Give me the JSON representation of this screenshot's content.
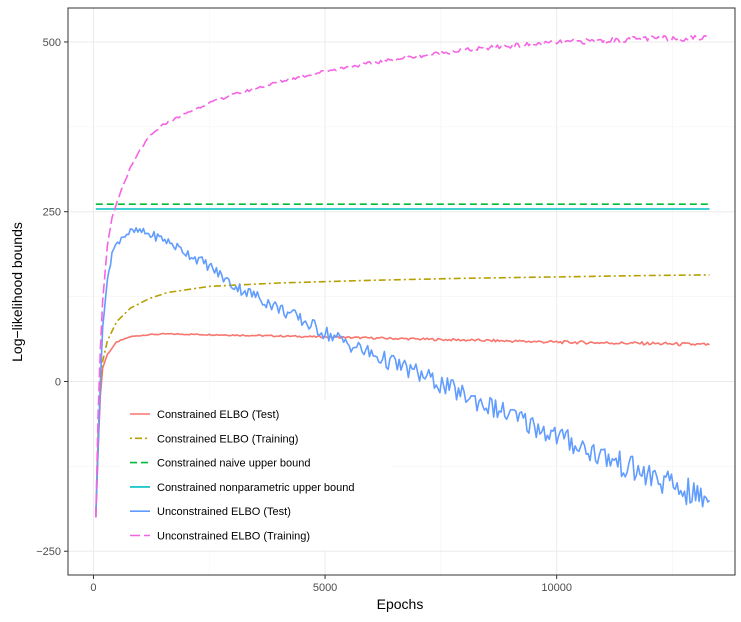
{
  "chart_data": {
    "type": "line",
    "title": "",
    "xlabel": "Epochs",
    "ylabel": "Log−likelihood bounds",
    "xlim": [
      -550,
      13850
    ],
    "ylim": [
      -285,
      550
    ],
    "x_ticks": [
      0,
      5000,
      10000
    ],
    "x_tick_labels": [
      "0",
      "5000",
      "10000"
    ],
    "y_ticks": [
      -250,
      0,
      250,
      500
    ],
    "y_tick_labels": [
      "−250",
      "0",
      "250",
      "500"
    ],
    "grid": true,
    "legend_position": "bottom-left",
    "series": [
      {
        "name": "Constrained ELBO (Test)",
        "color": "#F8766D",
        "dash": "solid",
        "noise": 0.6,
        "points": [
          [
            50,
            -200
          ],
          [
            100,
            -100
          ],
          [
            150,
            -20
          ],
          [
            200,
            20
          ],
          [
            300,
            40
          ],
          [
            500,
            58
          ],
          [
            800,
            66
          ],
          [
            1200,
            69
          ],
          [
            1600,
            70
          ],
          [
            2500,
            69
          ],
          [
            4000,
            67
          ],
          [
            6000,
            64
          ],
          [
            8000,
            61
          ],
          [
            10000,
            58
          ],
          [
            12000,
            56
          ],
          [
            13300,
            54
          ]
        ]
      },
      {
        "name": "Constrained ELBO (Training)",
        "color": "#B79F00",
        "dash": "dotdash",
        "noise": 0,
        "points": [
          [
            50,
            -200
          ],
          [
            100,
            -80
          ],
          [
            150,
            -10
          ],
          [
            200,
            30
          ],
          [
            300,
            60
          ],
          [
            500,
            88
          ],
          [
            800,
            108
          ],
          [
            1200,
            122
          ],
          [
            1600,
            131
          ],
          [
            2500,
            140
          ],
          [
            4000,
            145
          ],
          [
            6000,
            149
          ],
          [
            8000,
            152
          ],
          [
            10000,
            154
          ],
          [
            12000,
            156
          ],
          [
            13300,
            157
          ]
        ]
      },
      {
        "name": "Constrained naive upper bound",
        "color": "#00BA38",
        "dash": "dashed",
        "noise": 0,
        "points": [
          [
            50,
            261
          ],
          [
            13300,
            261
          ]
        ]
      },
      {
        "name": "Constrained nonparametric upper bound",
        "color": "#00BFC4",
        "dash": "solid",
        "noise": 0,
        "points": [
          [
            50,
            254
          ],
          [
            13300,
            254
          ]
        ]
      },
      {
        "name": "Unconstrained ELBO (Test)",
        "color": "#619CFF",
        "dash": "solid",
        "noise": 5,
        "points": [
          [
            50,
            -200
          ],
          [
            100,
            -100
          ],
          [
            150,
            0
          ],
          [
            200,
            80
          ],
          [
            300,
            150
          ],
          [
            400,
            190
          ],
          [
            600,
            213
          ],
          [
            800,
            220
          ],
          [
            1000,
            221
          ],
          [
            1500,
            210
          ],
          [
            2000,
            190
          ],
          [
            2500,
            170
          ],
          [
            3000,
            142
          ],
          [
            3500,
            126
          ],
          [
            4000,
            108
          ],
          [
            4500,
            90
          ],
          [
            5000,
            72
          ],
          [
            6000,
            40
          ],
          [
            7000,
            12
          ],
          [
            8000,
            -20
          ],
          [
            9000,
            -50
          ],
          [
            10000,
            -80
          ],
          [
            11000,
            -110
          ],
          [
            12000,
            -140
          ],
          [
            13000,
            -168
          ],
          [
            13300,
            -175
          ]
        ]
      },
      {
        "name": "Unconstrained ELBO (Training)",
        "color": "#F564E3",
        "dash": "longdash",
        "noise": 1,
        "points": [
          [
            50,
            -200
          ],
          [
            100,
            -50
          ],
          [
            150,
            50
          ],
          [
            200,
            120
          ],
          [
            300,
            200
          ],
          [
            400,
            240
          ],
          [
            500,
            262
          ],
          [
            600,
            282
          ],
          [
            800,
            315
          ],
          [
            1000,
            340
          ],
          [
            1200,
            360
          ],
          [
            1500,
            378
          ],
          [
            2000,
            395
          ],
          [
            2500,
            410
          ],
          [
            3000,
            422
          ],
          [
            4000,
            441
          ],
          [
            5000,
            457
          ],
          [
            6000,
            469
          ],
          [
            7000,
            479
          ],
          [
            8000,
            488
          ],
          [
            9000,
            494
          ],
          [
            10000,
            499
          ],
          [
            11000,
            502
          ],
          [
            12000,
            505
          ],
          [
            13300,
            506
          ]
        ]
      }
    ]
  }
}
